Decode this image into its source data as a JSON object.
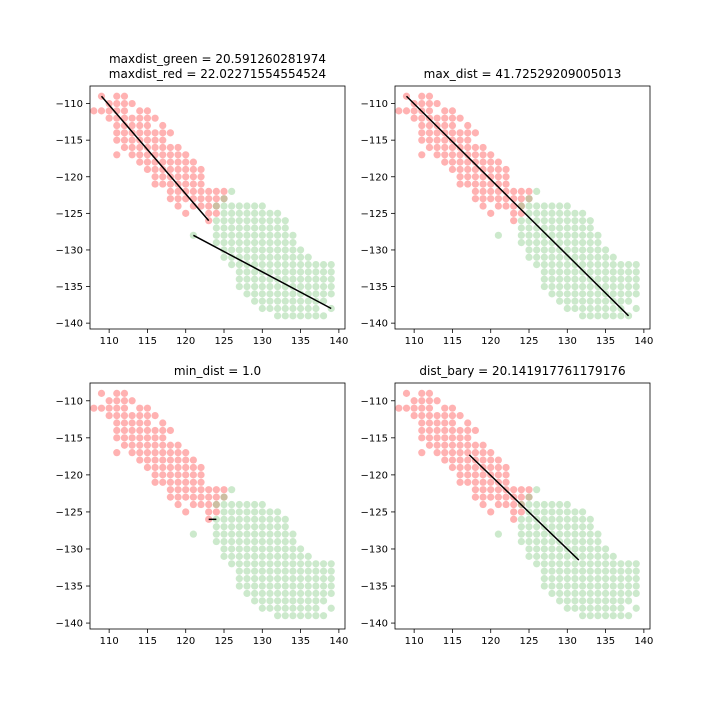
{
  "chart_data": [
    {
      "type": "scatter",
      "title_lines": [
        "maxdist_green = 20.591260281974",
        " maxdist_red = 22.02271554554524"
      ],
      "xlim": [
        107.5,
        140.8
      ],
      "ylim": [
        -140.8,
        -107.6
      ],
      "xticks": [
        110,
        115,
        120,
        125,
        130,
        135,
        140
      ],
      "yticks": [
        -110,
        -115,
        -120,
        -125,
        -130,
        -135,
        -140
      ],
      "grid": false,
      "segments": [
        {
          "from": [
            109,
            -109
          ],
          "to": [
            123,
            -126
          ]
        },
        {
          "from": [
            121,
            -128
          ],
          "to": [
            139,
            -138
          ]
        }
      ]
    },
    {
      "type": "scatter",
      "title_lines": [
        "max_dist = 41.72529209005013"
      ],
      "xlim": [
        107.5,
        140.8
      ],
      "ylim": [
        -140.8,
        -107.6
      ],
      "xticks": [
        110,
        115,
        120,
        125,
        130,
        135,
        140
      ],
      "yticks": [
        -110,
        -115,
        -120,
        -125,
        -130,
        -135,
        -140
      ],
      "grid": false,
      "segments": [
        {
          "from": [
            109,
            -109
          ],
          "to": [
            138,
            -139
          ]
        }
      ]
    },
    {
      "type": "scatter",
      "title_lines": [
        "min_dist = 1.0"
      ],
      "xlim": [
        107.5,
        140.8
      ],
      "ylim": [
        -140.8,
        -107.6
      ],
      "xticks": [
        110,
        115,
        120,
        125,
        130,
        135,
        140
      ],
      "yticks": [
        -110,
        -115,
        -120,
        -125,
        -130,
        -135,
        -140
      ],
      "grid": false,
      "segments": [
        {
          "from": [
            123,
            -126
          ],
          "to": [
            124,
            -126
          ]
        }
      ]
    },
    {
      "type": "scatter",
      "title_lines": [
        "dist_bary = 20.141917761179176"
      ],
      "xlim": [
        107.5,
        140.8
      ],
      "ylim": [
        -140.8,
        -107.6
      ],
      "xticks": [
        110,
        115,
        120,
        125,
        130,
        135,
        140
      ],
      "yticks": [
        -110,
        -115,
        -120,
        -125,
        -130,
        -135,
        -140
      ],
      "grid": false,
      "segments": [
        {
          "from": [
            117.2,
            -117.3
          ],
          "to": [
            131.5,
            -131.5
          ]
        }
      ]
    }
  ],
  "series": [
    {
      "color": "#ff7f7f",
      "rows": [
        {
          "y": -109,
          "x": [
            109,
            111,
            112
          ]
        },
        {
          "y": -110,
          "x": [
            110,
            111,
            112,
            113
          ]
        },
        {
          "y": -111,
          "x": [
            108,
            109,
            110,
            111,
            112,
            114,
            115
          ]
        },
        {
          "y": -112,
          "x": [
            110,
            111,
            112,
            113,
            114,
            115,
            116
          ]
        },
        {
          "y": -113,
          "x": [
            111,
            112,
            113,
            114,
            115,
            117
          ]
        },
        {
          "y": -114,
          "x": [
            111,
            112,
            113,
            114,
            115,
            116,
            117,
            118
          ]
        },
        {
          "y": -115,
          "x": [
            111,
            112,
            113,
            114,
            115,
            116,
            117
          ]
        },
        {
          "y": -116,
          "x": [
            112,
            113,
            114,
            115,
            116,
            117,
            118,
            119
          ]
        },
        {
          "y": -117,
          "x": [
            111,
            113,
            114,
            115,
            116,
            117,
            118,
            119,
            120
          ]
        },
        {
          "y": -118,
          "x": [
            114,
            115,
            116,
            117,
            118,
            119,
            120,
            121
          ]
        },
        {
          "y": -119,
          "x": [
            115,
            116,
            117,
            118,
            119,
            120,
            121,
            122
          ]
        },
        {
          "y": -120,
          "x": [
            116,
            117,
            118,
            119,
            120,
            121,
            122
          ]
        },
        {
          "y": -121,
          "x": [
            116,
            117,
            118,
            119,
            120,
            121,
            122
          ]
        },
        {
          "y": -122,
          "x": [
            118,
            119,
            120,
            121,
            122,
            123,
            124,
            125
          ]
        },
        {
          "y": -123,
          "x": [
            118,
            119,
            120,
            121,
            122,
            123,
            124,
            125
          ]
        },
        {
          "y": -124,
          "x": [
            119,
            121,
            122,
            123,
            124
          ]
        },
        {
          "y": -125,
          "x": [
            120,
            123,
            124
          ]
        },
        {
          "y": -126,
          "x": [
            123
          ]
        }
      ]
    },
    {
      "color": "#8fcf8f",
      "rows": [
        {
          "y": -122,
          "x": [
            126
          ]
        },
        {
          "y": -123,
          "x": [
            125
          ]
        },
        {
          "y": -124,
          "x": [
            124,
            125,
            126,
            127,
            128,
            129,
            130
          ]
        },
        {
          "y": -125,
          "x": [
            125,
            126,
            127,
            128,
            129,
            130,
            131,
            132
          ]
        },
        {
          "y": -126,
          "x": [
            124,
            125,
            126,
            127,
            128,
            129,
            130,
            131,
            132,
            133
          ]
        },
        {
          "y": -127,
          "x": [
            124,
            125,
            126,
            127,
            128,
            129,
            130,
            131,
            132,
            133
          ]
        },
        {
          "y": -128,
          "x": [
            121,
            124,
            125,
            126,
            127,
            128,
            129,
            130,
            131,
            132,
            133,
            134
          ]
        },
        {
          "y": -129,
          "x": [
            124,
            125,
            126,
            127,
            128,
            129,
            130,
            131,
            132,
            133,
            134
          ]
        },
        {
          "y": -130,
          "x": [
            125,
            126,
            127,
            128,
            129,
            130,
            131,
            132,
            133,
            134,
            135
          ]
        },
        {
          "y": -131,
          "x": [
            125,
            126,
            127,
            128,
            129,
            130,
            131,
            132,
            133,
            134,
            135,
            136
          ]
        },
        {
          "y": -132,
          "x": [
            126,
            127,
            128,
            129,
            130,
            131,
            132,
            133,
            134,
            135,
            136,
            137,
            138,
            139
          ]
        },
        {
          "y": -133,
          "x": [
            127,
            128,
            129,
            130,
            131,
            132,
            133,
            134,
            135,
            136,
            137,
            138,
            139
          ]
        },
        {
          "y": -134,
          "x": [
            127,
            128,
            129,
            130,
            131,
            132,
            133,
            134,
            135,
            136,
            137,
            138,
            139
          ]
        },
        {
          "y": -135,
          "x": [
            127,
            128,
            129,
            130,
            131,
            132,
            133,
            134,
            135,
            136,
            137,
            138,
            139
          ]
        },
        {
          "y": -136,
          "x": [
            128,
            129,
            130,
            131,
            132,
            133,
            134,
            135,
            136,
            137,
            138,
            139
          ]
        },
        {
          "y": -137,
          "x": [
            129,
            130,
            131,
            132,
            133,
            134,
            135,
            136,
            137,
            138
          ]
        },
        {
          "y": -138,
          "x": [
            130,
            131,
            132,
            133,
            134,
            135,
            136,
            137,
            139
          ]
        },
        {
          "y": -139,
          "x": [
            132,
            133,
            134,
            135,
            136,
            137,
            138
          ]
        }
      ]
    }
  ]
}
